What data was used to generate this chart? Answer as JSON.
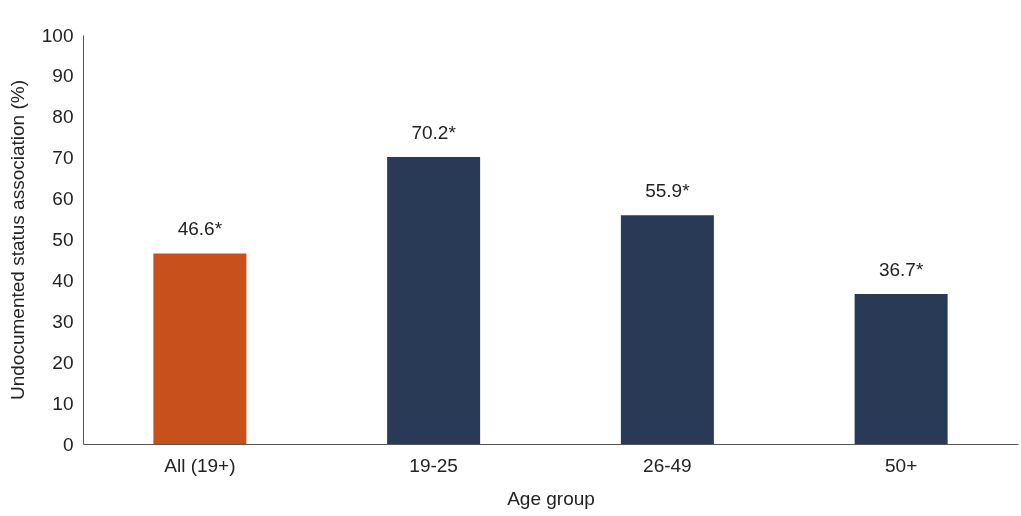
{
  "chart_data": {
    "type": "bar",
    "xlabel": "Age group",
    "ylabel": "Undocumented status association (%)",
    "categories": [
      "All (19+)",
      "19-25",
      "26-49",
      "50+"
    ],
    "values": [
      46.6,
      70.2,
      55.9,
      36.7
    ],
    "colors": [
      "#c8501c",
      "#283a55",
      "#283a55",
      "#283a55"
    ],
    "value_labels": [
      "46.6*",
      "70.2*",
      "55.9*",
      "36.7*"
    ],
    "ylim": [
      0,
      100
    ],
    "yticks": [
      0,
      10,
      20,
      30,
      40,
      50,
      60,
      70,
      80,
      90,
      100
    ],
    "grid": false
  }
}
